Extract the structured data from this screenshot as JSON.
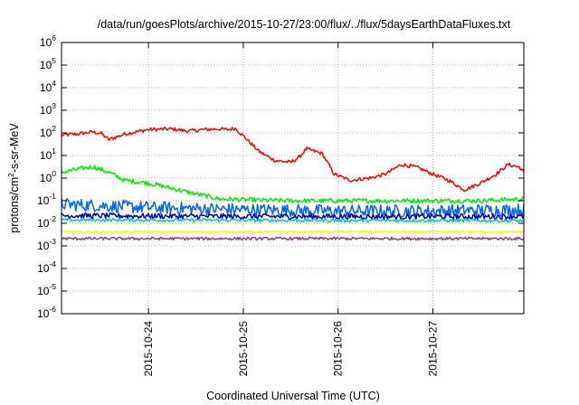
{
  "chart_data": {
    "type": "line",
    "title": "/data/run/goesPlots/archive/2015-10-27/23:00/flux/../flux/5daysEarthDataFluxes.txt",
    "xlabel": "Coordinated Universal Time (UTC)",
    "ylabel_parts": [
      "protons/cm",
      "2",
      "-s-sr-MeV"
    ],
    "y_scale": "log",
    "ylim": [
      1e-06,
      1000000.0
    ],
    "y_ticks": [
      {
        "base": "10",
        "exp": "-6",
        "value": 1e-06
      },
      {
        "base": "10",
        "exp": "-5",
        "value": 1e-05
      },
      {
        "base": "10",
        "exp": "-4",
        "value": 0.0001
      },
      {
        "base": "10",
        "exp": "-3",
        "value": 0.001
      },
      {
        "base": "10",
        "exp": "-2",
        "value": 0.01
      },
      {
        "base": "10",
        "exp": "-1",
        "value": 0.1
      },
      {
        "base": "10",
        "exp": "0",
        "value": 1
      },
      {
        "base": "10",
        "exp": "1",
        "value": 10
      },
      {
        "base": "10",
        "exp": "2",
        "value": 100
      },
      {
        "base": "10",
        "exp": "3",
        "value": 1000
      },
      {
        "base": "10",
        "exp": "4",
        "value": 10000
      },
      {
        "base": "10",
        "exp": "5",
        "value": 100000
      },
      {
        "base": "10",
        "exp": "6",
        "value": 1000000
      }
    ],
    "xlim": [
      "2015-10-23T02:00",
      "2015-10-27T23:00"
    ],
    "x_ticks": [
      {
        "label": "2015-10-24",
        "value": "2015-10-24T00:00"
      },
      {
        "label": "2015-10-25",
        "value": "2015-10-25T00:00"
      },
      {
        "label": "2015-10-26",
        "value": "2015-10-26T00:00"
      },
      {
        "label": "2015-10-27",
        "value": "2015-10-27T00:00"
      }
    ],
    "grid": true,
    "legend": "none",
    "series": [
      {
        "color": "#ff0000",
        "noise": 0.08,
        "x": [
          "2015-10-23T02:00",
          "2015-10-23T06:00",
          "2015-10-23T10:00",
          "2015-10-23T12:00",
          "2015-10-23T14:00",
          "2015-10-23T18:00",
          "2015-10-24T00:00",
          "2015-10-24T06:00",
          "2015-10-24T10:00",
          "2015-10-24T14:00",
          "2015-10-24T18:00",
          "2015-10-24T20:00",
          "2015-10-24T22:00",
          "2015-10-25T01:00",
          "2015-10-25T04:00",
          "2015-10-25T08:00",
          "2015-10-25T12:00",
          "2015-10-25T14:00",
          "2015-10-25T16:00",
          "2015-10-25T20:00",
          "2015-10-25T23:00",
          "2015-10-26T03:00",
          "2015-10-26T08:00",
          "2015-10-26T12:00",
          "2015-10-26T16:00",
          "2015-10-26T20:00",
          "2015-10-27T00:00",
          "2015-10-27T04:00",
          "2015-10-27T08:00",
          "2015-10-27T12:00",
          "2015-10-27T16:00",
          "2015-10-27T19:00",
          "2015-10-27T22:00",
          "2015-10-27T23:00"
        ],
        "y": [
          80,
          90,
          110,
          95,
          50,
          90,
          140,
          150,
          120,
          140,
          150,
          140,
          160,
          50,
          15,
          6,
          5,
          8,
          20,
          12,
          1.5,
          0.8,
          1.0,
          1.5,
          4,
          3,
          1.5,
          0.8,
          0.3,
          0.6,
          1.5,
          4,
          3,
          1.8
        ]
      },
      {
        "color": "#00ee00",
        "noise": 0.1,
        "x": [
          "2015-10-23T02:00",
          "2015-10-23T06:00",
          "2015-10-23T10:00",
          "2015-10-23T14:00",
          "2015-10-23T18:00",
          "2015-10-24T00:00",
          "2015-10-24T06:00",
          "2015-10-24T12:00",
          "2015-10-24T18:00",
          "2015-10-25T00:00",
          "2015-10-25T12:00",
          "2015-10-26T00:00",
          "2015-10-26T12:00",
          "2015-10-27T00:00",
          "2015-10-27T12:00",
          "2015-10-27T23:00"
        ],
        "y": [
          1.8,
          2.5,
          3.2,
          1.8,
          0.8,
          0.6,
          0.35,
          0.2,
          0.12,
          0.11,
          0.1,
          0.1,
          0.1,
          0.1,
          0.1,
          0.12
        ]
      },
      {
        "color": "#0064ff",
        "noise": 0.28,
        "x": [
          "2015-10-23T02:00",
          "2015-10-24T00:00",
          "2015-10-25T00:00",
          "2015-10-26T00:00",
          "2015-10-27T00:00",
          "2015-10-27T23:00"
        ],
        "y": [
          0.07,
          0.05,
          0.04,
          0.035,
          0.035,
          0.04
        ]
      },
      {
        "color": "#0000b4",
        "noise": 0.12,
        "x": [
          "2015-10-23T02:00",
          "2015-10-25T00:00",
          "2015-10-27T23:00"
        ],
        "y": [
          0.022,
          0.02,
          0.02
        ]
      },
      {
        "color": "#00c8c8",
        "noise": 0.07,
        "x": [
          "2015-10-23T02:00",
          "2015-10-27T23:00"
        ],
        "y": [
          0.014,
          0.013
        ]
      },
      {
        "color": "#ffff00",
        "noise": 0.05,
        "x": [
          "2015-10-23T02:00",
          "2015-10-27T23:00"
        ],
        "y": [
          0.0042,
          0.0042
        ]
      },
      {
        "color": "#8c3c8c",
        "noise": 0.06,
        "x": [
          "2015-10-23T02:00",
          "2015-10-27T23:00"
        ],
        "y": [
          0.0021,
          0.0021
        ]
      }
    ]
  }
}
